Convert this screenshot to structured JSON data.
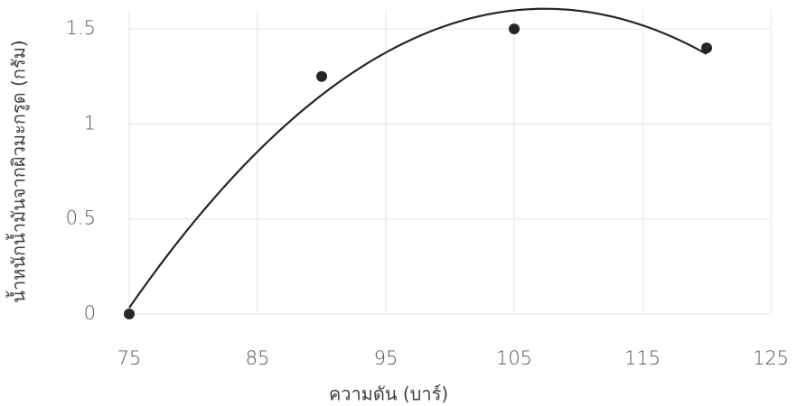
{
  "chart_data": {
    "type": "scatter",
    "x_label": "ความดัน (บาร์)",
    "y_label": "น้ำหนักน้ำมันจากผิวมะกรูด (กรัม)",
    "x": [
      75,
      90,
      105,
      120
    ],
    "values": [
      0,
      1.25,
      1.5,
      1.4
    ],
    "color": "#262626",
    "trendline": {
      "type": "polynomial",
      "order": 2,
      "color": "#262626"
    },
    "xlim": [
      75,
      125
    ],
    "xticks": [
      75,
      85,
      95,
      105,
      115,
      125
    ],
    "ylim": [
      0,
      1.6
    ],
    "yticks": [
      0,
      0.5,
      1,
      1.5
    ],
    "grid": true
  }
}
